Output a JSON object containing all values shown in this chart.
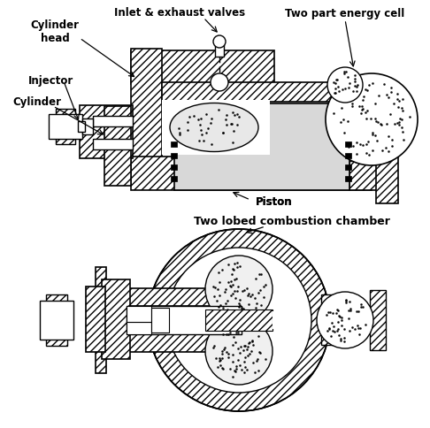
{
  "background_color": "#ffffff",
  "line_color": "#000000",
  "labels": {
    "inlet_exhaust": "Inlet & exhaust valves",
    "two_part": "Two part energy cell",
    "cylinder_head": "Cylinder\nhead",
    "injector": "Injector",
    "cylinder": "Cylinder",
    "piston": "Piston",
    "two_lobed": "Two lobed combustion chamber"
  },
  "fig_width": 4.86,
  "fig_height": 4.84,
  "dpi": 100
}
